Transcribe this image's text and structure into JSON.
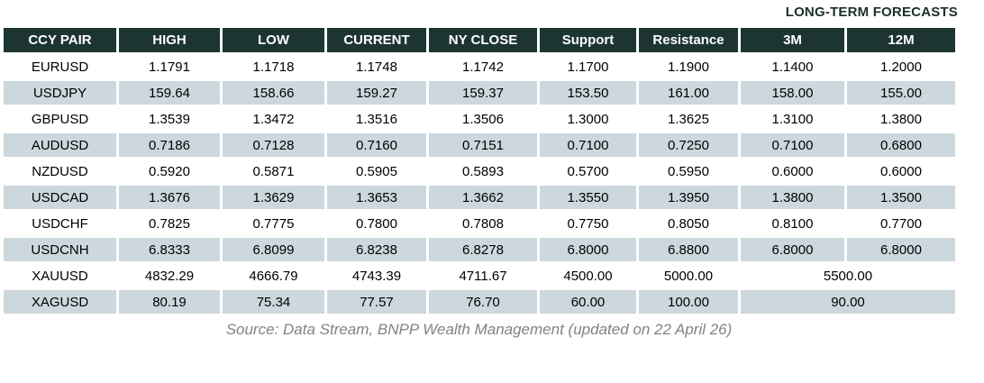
{
  "title": "LONG-TERM FORECASTS",
  "source": "Source: Data Stream, BNPP Wealth Management (updated on 22 April 26)",
  "colors": {
    "header_bg": "#1d3531",
    "header_text": "#ffffff",
    "row_alt_bg": "#ccd8dd",
    "title_text": "#1a2f2b",
    "source_text": "#808285"
  },
  "table": {
    "columns": [
      "CCY PAIR",
      "HIGH",
      "LOW",
      "CURRENT",
      "NY CLOSE",
      "Support",
      "Resistance",
      "3M",
      "12M"
    ],
    "rows": [
      {
        "pair": "EURUSD",
        "high": "1.1791",
        "low": "1.1718",
        "current": "1.1748",
        "ny_close": "1.1742",
        "support": "1.1700",
        "resistance": "1.1900",
        "m3": "1.1400",
        "m12": "1.2000"
      },
      {
        "pair": "USDJPY",
        "high": "159.64",
        "low": "158.66",
        "current": "159.27",
        "ny_close": "159.37",
        "support": "153.50",
        "resistance": "161.00",
        "m3": "158.00",
        "m12": "155.00"
      },
      {
        "pair": "GBPUSD",
        "high": "1.3539",
        "low": "1.3472",
        "current": "1.3516",
        "ny_close": "1.3506",
        "support": "1.3000",
        "resistance": "1.3625",
        "m3": "1.3100",
        "m12": "1.3800"
      },
      {
        "pair": "AUDUSD",
        "high": "0.7186",
        "low": "0.7128",
        "current": "0.7160",
        "ny_close": "0.7151",
        "support": "0.7100",
        "resistance": "0.7250",
        "m3": "0.7100",
        "m12": "0.6800"
      },
      {
        "pair": "NZDUSD",
        "high": "0.5920",
        "low": "0.5871",
        "current": "0.5905",
        "ny_close": "0.5893",
        "support": "0.5700",
        "resistance": "0.5950",
        "m3": "0.6000",
        "m12": "0.6000"
      },
      {
        "pair": "USDCAD",
        "high": "1.3676",
        "low": "1.3629",
        "current": "1.3653",
        "ny_close": "1.3662",
        "support": "1.3550",
        "resistance": "1.3950",
        "m3": "1.3800",
        "m12": "1.3500"
      },
      {
        "pair": "USDCHF",
        "high": "0.7825",
        "low": "0.7775",
        "current": "0.7800",
        "ny_close": "0.7808",
        "support": "0.7750",
        "resistance": "0.8050",
        "m3": "0.8100",
        "m12": "0.7700"
      },
      {
        "pair": "USDCNH",
        "high": "6.8333",
        "low": "6.8099",
        "current": "6.8238",
        "ny_close": "6.8278",
        "support": "6.8000",
        "resistance": "6.8800",
        "m3": "6.8000",
        "m12": "6.8000"
      },
      {
        "pair": "XAUUSD",
        "high": "4832.29",
        "low": "4666.79",
        "current": "4743.39",
        "ny_close": "4711.67",
        "support": "4500.00",
        "resistance": "5000.00",
        "forecast_merged": "5500.00"
      },
      {
        "pair": "XAGUSD",
        "high": "80.19",
        "low": "75.34",
        "current": "77.57",
        "ny_close": "76.70",
        "support": "60.00",
        "resistance": "100.00",
        "forecast_merged": "90.00"
      }
    ]
  }
}
